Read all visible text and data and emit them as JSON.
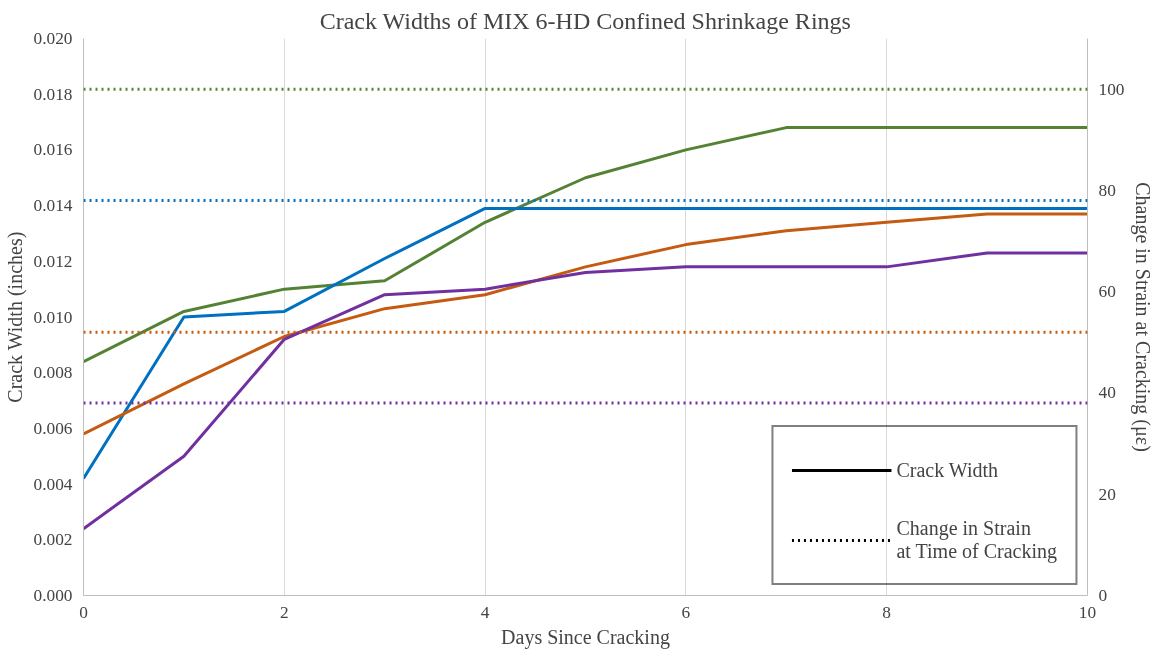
{
  "chart_data": {
    "type": "line",
    "title": "Crack Widths of MIX 6-HD Confined Shrinkage Rings",
    "xlabel": "Days Since Cracking",
    "ylabel": "Crack Width (inches)",
    "y2label": "Change in Strain at Cracking (με)",
    "x": [
      0,
      1,
      2,
      3,
      4,
      5,
      6,
      7,
      8,
      9,
      10
    ],
    "series": [
      {
        "color": "#548235",
        "values": [
          0.0084,
          0.0102,
          0.011,
          0.0113,
          0.0134,
          0.015,
          0.016,
          0.0168,
          0.0168,
          0.0168,
          0.0168
        ]
      },
      {
        "color": "#0070c0",
        "values": [
          0.0042,
          0.01,
          0.0102,
          0.0121,
          0.0139,
          0.0139,
          0.0139,
          0.0139,
          0.0139,
          0.0139,
          0.0139
        ]
      },
      {
        "color": "#c55a11",
        "values": [
          0.0058,
          0.0076,
          0.0093,
          0.0103,
          0.0108,
          0.0118,
          0.0126,
          0.0131,
          0.0134,
          0.0137,
          0.0137
        ]
      },
      {
        "color": "#7030a0",
        "values": [
          0.0024,
          0.005,
          0.0092,
          0.0108,
          0.011,
          0.0116,
          0.0118,
          0.0118,
          0.0118,
          0.0123,
          0.0123
        ]
      }
    ],
    "ref_lines": [
      {
        "axis": "y2",
        "value": 100,
        "color": "#548235",
        "line_style": "dotted"
      },
      {
        "axis": "y2",
        "value": 78,
        "color": "#0070c0",
        "line_style": "dotted"
      },
      {
        "axis": "y2",
        "value": 52,
        "color": "#c55a11",
        "line_style": "dotted"
      },
      {
        "axis": "y2",
        "value": 38,
        "color": "#7030a0",
        "line_style": "dotted"
      }
    ],
    "annotations": [
      "Crack Width",
      "Change in Strain\nat Time of Cracking"
    ],
    "grid": "x",
    "xlim": [
      0,
      10
    ],
    "xticks": [
      0,
      2,
      4,
      6,
      8,
      10
    ],
    "ylim": [
      0,
      0.02
    ],
    "yticks": [
      {
        "value": 0,
        "label": "0.000"
      },
      {
        "value": 0.002,
        "label": "0.002"
      },
      {
        "value": 0.004,
        "label": "0.004"
      },
      {
        "value": 0.006,
        "label": "0.006"
      },
      {
        "value": 0.008,
        "label": "0.008"
      },
      {
        "value": 0.01,
        "label": "0.010"
      },
      {
        "value": 0.012,
        "label": "0.012"
      },
      {
        "value": 0.014,
        "label": "0.014"
      },
      {
        "value": 0.016,
        "label": "0.016"
      },
      {
        "value": 0.018,
        "label": "0.018"
      },
      {
        "value": 0.02,
        "label": "0.020"
      }
    ],
    "y2lim": [
      0,
      110
    ],
    "y2ticks": [
      0,
      20,
      40,
      60,
      80,
      100
    ],
    "line_style": "solid"
  }
}
